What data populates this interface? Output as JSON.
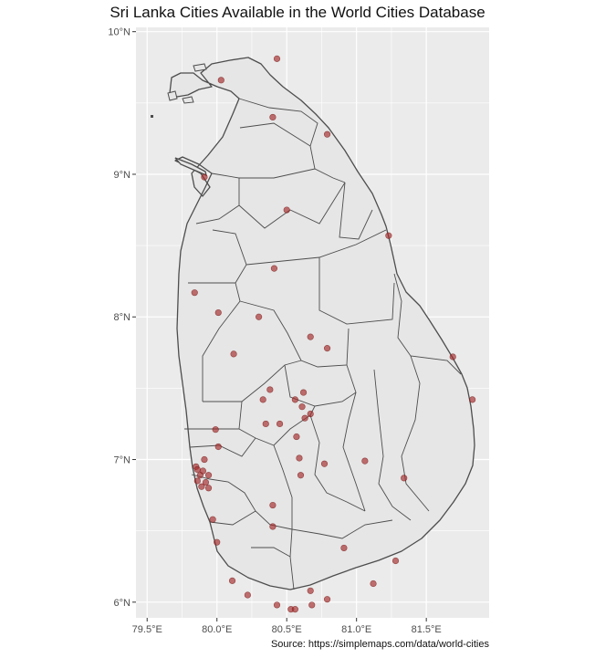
{
  "title": "Sri Lanka Cities Available in the World Cities Database",
  "caption": "Source: https://simplemaps.com/data/world-cities",
  "colors": {
    "panel": "#ebebeb",
    "grid": "#ffffff",
    "land": "#e6e6e6",
    "border": "#4d4d4d",
    "point": "#a52a2a"
  },
  "chart_data": {
    "type": "scatter",
    "x_ticks": [
      "79.5°E",
      "80.0°E",
      "80.5°E",
      "81.0°E",
      "81.5°E"
    ],
    "y_ticks": [
      "10°N",
      "9°N",
      "8°N",
      "7°N",
      "6°N"
    ],
    "xlim": [
      79.42,
      81.95
    ],
    "ylim": [
      5.89,
      10.03
    ],
    "grid": true,
    "points": [
      {
        "lon": 80.43,
        "lat": 9.81
      },
      {
        "lon": 80.03,
        "lat": 9.66
      },
      {
        "lon": 80.4,
        "lat": 9.4
      },
      {
        "lon": 80.79,
        "lat": 9.28
      },
      {
        "lon": 79.91,
        "lat": 8.98
      },
      {
        "lon": 80.5,
        "lat": 8.75
      },
      {
        "lon": 81.23,
        "lat": 8.57
      },
      {
        "lon": 80.41,
        "lat": 8.34
      },
      {
        "lon": 79.84,
        "lat": 8.17
      },
      {
        "lon": 80.01,
        "lat": 8.03
      },
      {
        "lon": 80.3,
        "lat": 8.0
      },
      {
        "lon": 80.67,
        "lat": 7.86
      },
      {
        "lon": 80.79,
        "lat": 7.78
      },
      {
        "lon": 80.12,
        "lat": 7.74
      },
      {
        "lon": 81.69,
        "lat": 7.72
      },
      {
        "lon": 80.38,
        "lat": 7.49
      },
      {
        "lon": 80.62,
        "lat": 7.47
      },
      {
        "lon": 80.33,
        "lat": 7.42
      },
      {
        "lon": 80.56,
        "lat": 7.42
      },
      {
        "lon": 81.83,
        "lat": 7.42
      },
      {
        "lon": 80.61,
        "lat": 7.37
      },
      {
        "lon": 80.67,
        "lat": 7.32
      },
      {
        "lon": 80.63,
        "lat": 7.29
      },
      {
        "lon": 80.35,
        "lat": 7.25
      },
      {
        "lon": 80.45,
        "lat": 7.25
      },
      {
        "lon": 79.99,
        "lat": 7.21
      },
      {
        "lon": 80.57,
        "lat": 7.16
      },
      {
        "lon": 80.01,
        "lat": 7.09
      },
      {
        "lon": 80.59,
        "lat": 7.01
      },
      {
        "lon": 79.91,
        "lat": 7.0
      },
      {
        "lon": 80.77,
        "lat": 6.97
      },
      {
        "lon": 81.06,
        "lat": 6.99
      },
      {
        "lon": 79.85,
        "lat": 6.95
      },
      {
        "lon": 79.86,
        "lat": 6.93
      },
      {
        "lon": 79.9,
        "lat": 6.92
      },
      {
        "lon": 79.88,
        "lat": 6.89
      },
      {
        "lon": 79.94,
        "lat": 6.89
      },
      {
        "lon": 80.6,
        "lat": 6.89
      },
      {
        "lon": 81.34,
        "lat": 6.87
      },
      {
        "lon": 79.86,
        "lat": 6.85
      },
      {
        "lon": 79.92,
        "lat": 6.84
      },
      {
        "lon": 79.89,
        "lat": 6.81
      },
      {
        "lon": 79.94,
        "lat": 6.8
      },
      {
        "lon": 80.4,
        "lat": 6.68
      },
      {
        "lon": 79.97,
        "lat": 6.58
      },
      {
        "lon": 80.4,
        "lat": 6.53
      },
      {
        "lon": 80.0,
        "lat": 6.42
      },
      {
        "lon": 80.91,
        "lat": 6.38
      },
      {
        "lon": 81.28,
        "lat": 6.29
      },
      {
        "lon": 80.11,
        "lat": 6.15
      },
      {
        "lon": 81.12,
        "lat": 6.13
      },
      {
        "lon": 80.67,
        "lat": 6.08
      },
      {
        "lon": 80.22,
        "lat": 6.05
      },
      {
        "lon": 80.79,
        "lat": 6.02
      },
      {
        "lon": 80.43,
        "lat": 5.98
      },
      {
        "lon": 80.68,
        "lat": 5.98
      },
      {
        "lon": 80.53,
        "lat": 5.95
      },
      {
        "lon": 80.56,
        "lat": 5.95
      }
    ]
  }
}
